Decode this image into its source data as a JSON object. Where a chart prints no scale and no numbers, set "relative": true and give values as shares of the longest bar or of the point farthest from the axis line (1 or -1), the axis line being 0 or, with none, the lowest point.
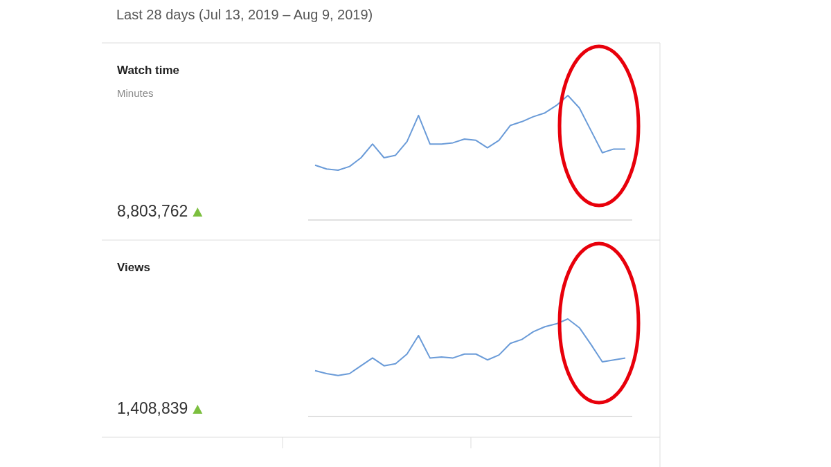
{
  "chart_data": [
    {
      "type": "line",
      "title": "Last 28 days (Jul 13, 2019 – Aug 9, 2019)",
      "relative": true,
      "categories": [
        null,
        null,
        null,
        null,
        null,
        null,
        null,
        null,
        null,
        null,
        null,
        null,
        null,
        null,
        null,
        null,
        null,
        null,
        null,
        null,
        null,
        null,
        null,
        null,
        null,
        null,
        null,
        null
      ],
      "series": [
        {
          "color": "#6a9bd8",
          "values": [
            0.44,
            0.41,
            0.4,
            0.43,
            0.5,
            0.61,
            0.5,
            0.52,
            0.63,
            0.84,
            0.61,
            0.61,
            0.62,
            0.65,
            0.64,
            0.58,
            0.64,
            0.76,
            0.79,
            0.83,
            0.86,
            0.92,
            1,
            0.9,
            0.72,
            0.54,
            0.57,
            0.57
          ]
        }
      ],
      "annotations": [
        "Watch time",
        "Minutes",
        "8,803,762"
      ]
    },
    {
      "type": "line",
      "relative": true,
      "categories": [
        null,
        null,
        null,
        null,
        null,
        null,
        null,
        null,
        null,
        null,
        null,
        null,
        null,
        null,
        null,
        null,
        null,
        null,
        null,
        null,
        null,
        null,
        null,
        null,
        null,
        null,
        null,
        null
      ],
      "series": [
        {
          "color": "#6a9bd8",
          "values": [
            0.47,
            0.44,
            0.42,
            0.44,
            0.52,
            0.6,
            0.52,
            0.54,
            0.64,
            0.83,
            0.6,
            0.61,
            0.6,
            0.64,
            0.64,
            0.58,
            0.63,
            0.75,
            0.79,
            0.87,
            0.92,
            0.95,
            1,
            0.91,
            0.74,
            0.56,
            0.58,
            0.6
          ]
        }
      ],
      "annotations": [
        "Views",
        "1,408,839"
      ]
    }
  ]
}
